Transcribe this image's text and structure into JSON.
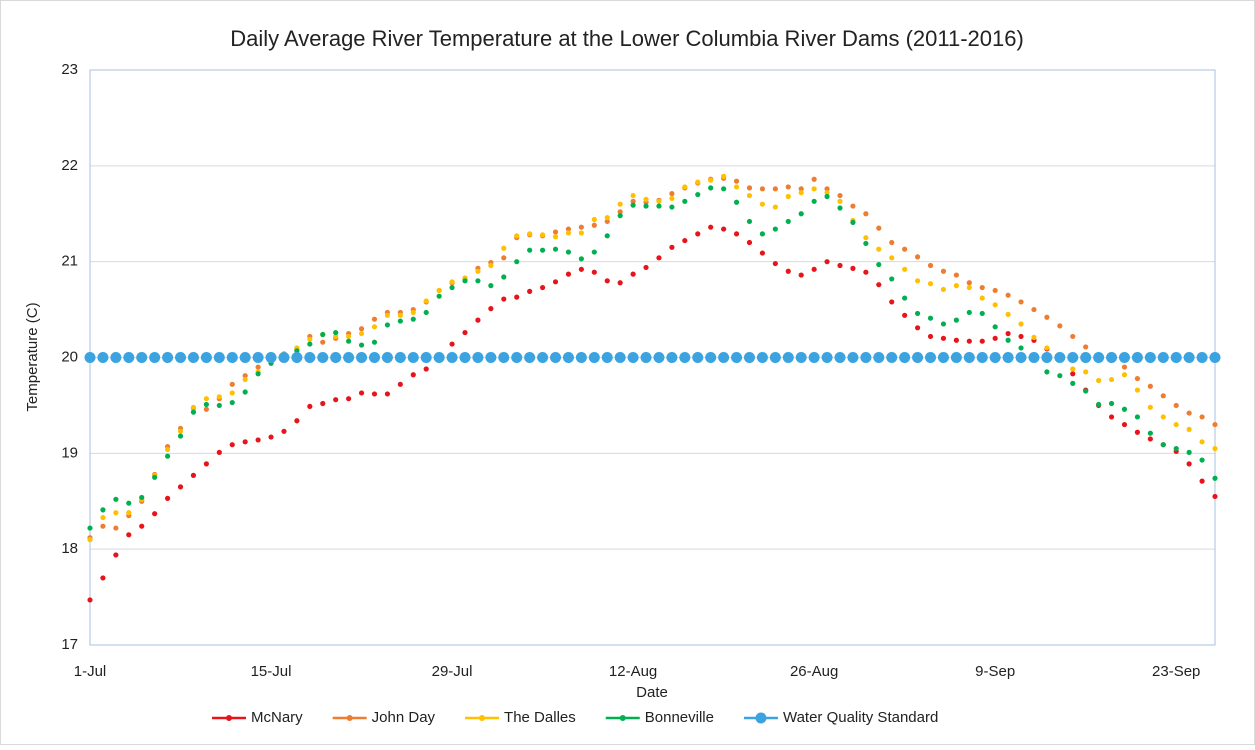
{
  "chart_data": {
    "type": "line",
    "markers_only": true,
    "title": "Daily Average River Temperature at the Lower Columbia River Dams (2011-2016)",
    "x_label": "Date",
    "y_label": "Temperature (C)",
    "categories": [
      "1-Jul",
      null,
      null,
      null,
      null,
      null,
      null,
      null,
      null,
      null,
      null,
      null,
      null,
      null,
      "15-Jul",
      null,
      null,
      null,
      null,
      null,
      null,
      null,
      null,
      null,
      null,
      null,
      null,
      null,
      "29-Jul",
      null,
      null,
      null,
      null,
      null,
      null,
      null,
      null,
      null,
      null,
      null,
      null,
      null,
      "12-Aug",
      null,
      null,
      null,
      null,
      null,
      null,
      null,
      null,
      null,
      null,
      null,
      null,
      null,
      "26-Aug",
      null,
      null,
      null,
      null,
      null,
      null,
      null,
      null,
      null,
      null,
      null,
      null,
      null,
      "9-Sep",
      null,
      null,
      null,
      null,
      null,
      null,
      null,
      null,
      null,
      null,
      null,
      null,
      null,
      "23-Sep",
      null,
      null,
      null
    ],
    "ylim": [
      17,
      23
    ],
    "yticks": [
      17,
      18,
      19,
      20,
      21,
      22,
      23
    ],
    "grid": true,
    "legend": "bottom",
    "series": [
      {
        "name": "McNary",
        "color": "#e8141b",
        "values": [
          17.47,
          17.7,
          17.94,
          18.15,
          18.24,
          18.37,
          18.53,
          18.65,
          18.77,
          18.89,
          19.01,
          19.09,
          19.12,
          19.14,
          19.17,
          19.23,
          19.34,
          19.49,
          19.52,
          19.56,
          19.57,
          19.63,
          19.62,
          19.62,
          19.72,
          19.82,
          19.88,
          20.0,
          20.14,
          20.26,
          20.39,
          20.51,
          20.61,
          20.63,
          20.69,
          20.73,
          20.79,
          20.87,
          20.92,
          20.89,
          20.8,
          20.78,
          20.87,
          20.94,
          21.04,
          21.15,
          21.22,
          21.29,
          21.36,
          21.34,
          21.29,
          21.2,
          21.09,
          20.98,
          20.9,
          20.86,
          20.92,
          21.0,
          20.96,
          20.93,
          20.89,
          20.76,
          20.58,
          20.44,
          20.31,
          20.22,
          20.2,
          20.18,
          20.17,
          20.17,
          20.2,
          20.25,
          20.22,
          20.18,
          20.09,
          19.98,
          19.83,
          19.66,
          19.5,
          19.38,
          19.3,
          19.22,
          19.15,
          19.09,
          19.02,
          18.89,
          18.71,
          18.55
        ]
      },
      {
        "name": "John Day",
        "color": "#ed7d31",
        "values": [
          18.12,
          18.24,
          18.22,
          18.35,
          18.5,
          18.78,
          19.07,
          19.26,
          19.47,
          19.46,
          19.57,
          19.72,
          19.81,
          19.9,
          19.98,
          20.04,
          20.09,
          20.22,
          20.16,
          20.2,
          20.25,
          20.3,
          20.4,
          20.47,
          20.47,
          20.5,
          20.58,
          20.7,
          20.78,
          20.82,
          20.93,
          20.99,
          21.04,
          21.25,
          21.28,
          21.27,
          21.31,
          21.34,
          21.36,
          21.38,
          21.42,
          21.52,
          21.63,
          21.62,
          21.64,
          21.71,
          21.77,
          21.82,
          21.86,
          21.87,
          21.84,
          21.77,
          21.76,
          21.76,
          21.78,
          21.76,
          21.86,
          21.76,
          21.69,
          21.58,
          21.5,
          21.35,
          21.2,
          21.13,
          21.05,
          20.96,
          20.9,
          20.86,
          20.78,
          20.73,
          20.7,
          20.65,
          20.58,
          20.5,
          20.42,
          20.33,
          20.22,
          20.11,
          20.0,
          19.98,
          19.9,
          19.78,
          19.7,
          19.6,
          19.5,
          19.42,
          19.38,
          19.3
        ]
      },
      {
        "name": "The Dalles",
        "color": "#ffc000",
        "values": [
          18.1,
          18.33,
          18.38,
          18.38,
          18.52,
          18.77,
          19.04,
          19.23,
          19.48,
          19.57,
          19.59,
          19.63,
          19.77,
          19.85,
          19.97,
          20.04,
          20.1,
          20.19,
          20.24,
          20.22,
          20.22,
          20.25,
          20.32,
          20.44,
          20.44,
          20.47,
          20.59,
          20.7,
          20.79,
          20.83,
          20.9,
          20.96,
          21.14,
          21.27,
          21.29,
          21.28,
          21.26,
          21.3,
          21.3,
          21.44,
          21.46,
          21.6,
          21.69,
          21.65,
          21.63,
          21.66,
          21.78,
          21.83,
          21.85,
          21.89,
          21.78,
          21.69,
          21.6,
          21.57,
          21.68,
          21.72,
          21.76,
          21.72,
          21.63,
          21.43,
          21.25,
          21.13,
          21.04,
          20.92,
          20.8,
          20.77,
          20.71,
          20.75,
          20.73,
          20.62,
          20.55,
          20.45,
          20.35,
          20.21,
          20.1,
          19.98,
          19.88,
          19.85,
          19.76,
          19.77,
          19.82,
          19.66,
          19.48,
          19.38,
          19.3,
          19.25,
          19.12,
          19.05
        ]
      },
      {
        "name": "Bonneville",
        "color": "#00b050",
        "values": [
          18.22,
          18.41,
          18.52,
          18.48,
          18.54,
          18.75,
          18.97,
          19.18,
          19.43,
          19.51,
          19.5,
          19.53,
          19.64,
          19.83,
          19.94,
          20.02,
          20.07,
          20.14,
          20.24,
          20.26,
          20.17,
          20.13,
          20.16,
          20.34,
          20.38,
          20.4,
          20.47,
          20.64,
          20.73,
          20.8,
          20.8,
          20.75,
          20.84,
          21.0,
          21.12,
          21.12,
          21.13,
          21.1,
          21.03,
          21.1,
          21.27,
          21.48,
          21.59,
          21.58,
          21.58,
          21.57,
          21.63,
          21.7,
          21.77,
          21.76,
          21.62,
          21.42,
          21.29,
          21.34,
          21.42,
          21.5,
          21.63,
          21.68,
          21.56,
          21.41,
          21.19,
          20.97,
          20.82,
          20.62,
          20.46,
          20.41,
          20.35,
          20.39,
          20.47,
          20.46,
          20.32,
          20.18,
          20.1,
          20.01,
          19.85,
          19.81,
          19.73,
          19.65,
          19.51,
          19.52,
          19.46,
          19.38,
          19.21,
          19.09,
          19.05,
          19.01,
          18.93,
          18.74
        ]
      },
      {
        "name": "Water Quality Standard",
        "color": "#3aa3e0",
        "values": [
          20,
          20,
          20,
          20,
          20,
          20,
          20,
          20,
          20,
          20,
          20,
          20,
          20,
          20,
          20,
          20,
          20,
          20,
          20,
          20,
          20,
          20,
          20,
          20,
          20,
          20,
          20,
          20,
          20,
          20,
          20,
          20,
          20,
          20,
          20,
          20,
          20,
          20,
          20,
          20,
          20,
          20,
          20,
          20,
          20,
          20,
          20,
          20,
          20,
          20,
          20,
          20,
          20,
          20,
          20,
          20,
          20,
          20,
          20,
          20,
          20,
          20,
          20,
          20,
          20,
          20,
          20,
          20,
          20,
          20,
          20,
          20,
          20,
          20,
          20,
          20,
          20,
          20,
          20,
          20,
          20,
          20,
          20,
          20,
          20,
          20,
          20,
          20
        ]
      }
    ]
  }
}
